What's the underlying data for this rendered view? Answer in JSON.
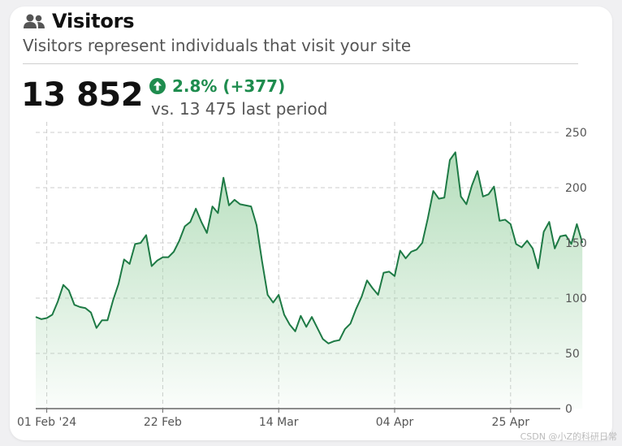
{
  "header": {
    "title": "Visitors",
    "icon": "users-icon",
    "subtitle": "Visitors represent individuals that visit your site"
  },
  "summary": {
    "total": "13 852",
    "change": "2.8% (+377)",
    "change_icon": "arrow-up-circle-icon",
    "comparison": "vs. 13 475 last period"
  },
  "colors": {
    "line": "#1e7a45",
    "positive": "#1e8c4e",
    "fill_top": "#a8d8b0",
    "grid": "#cccccc"
  },
  "watermark": "CSDN @小Z的科研日常",
  "chart_data": {
    "type": "area",
    "xlabel": "",
    "ylabel": "",
    "ylim": [
      0,
      250
    ],
    "y_ticks": [
      0,
      50,
      100,
      150,
      200,
      250
    ],
    "y_axis_position": "right",
    "grid": true,
    "x_ticks": [
      {
        "label": "01 Feb '24",
        "day": 2
      },
      {
        "label": "22 Feb",
        "day": 23
      },
      {
        "label": "14 Mar",
        "day": 44
      },
      {
        "label": "04 Apr",
        "day": 65
      },
      {
        "label": "25 Apr",
        "day": 86
      }
    ],
    "x_range": [
      0,
      95
    ],
    "series": [
      {
        "values": [
          83,
          81,
          82,
          85,
          97,
          112,
          107,
          94,
          92,
          91,
          87,
          73,
          80,
          80,
          98,
          113,
          135,
          131,
          149,
          150,
          157,
          129,
          134,
          137,
          137,
          142,
          152,
          165,
          169,
          181,
          169,
          159,
          183,
          177,
          209,
          184,
          189,
          185,
          184,
          183,
          166,
          133,
          103,
          96,
          103,
          85,
          76,
          70,
          84,
          74,
          83,
          73,
          63,
          59,
          61,
          62,
          72,
          77,
          90,
          101,
          116,
          109,
          103,
          123,
          124,
          120,
          143,
          136,
          142,
          144,
          150,
          172,
          197,
          190,
          191,
          225,
          232,
          192,
          185,
          202,
          215,
          192,
          194,
          201,
          170,
          171,
          167,
          149,
          146,
          152,
          145,
          127,
          160,
          169,
          145,
          156,
          157,
          149,
          167,
          150
        ]
      }
    ]
  }
}
